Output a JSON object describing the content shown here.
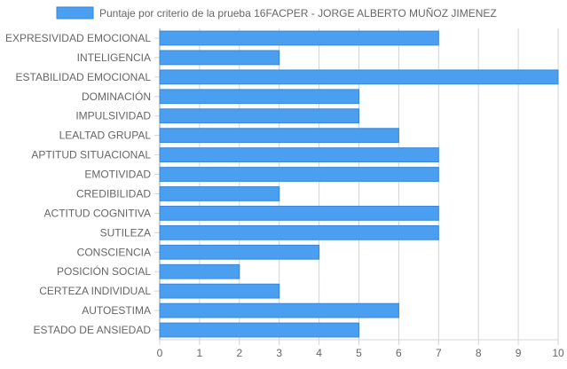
{
  "colors": {
    "bar_fill": "#4a9ff0",
    "bar_stroke": "#3a86d8",
    "grid": "#d4d4d4",
    "axis": "#999999",
    "text": "#666666"
  },
  "chart_data": {
    "type": "bar",
    "orientation": "horizontal",
    "categories": [
      "EXPRESIVIDAD EMOCIONAL",
      "INTELIGENCIA",
      "ESTABILIDAD EMOCIONAL",
      "DOMINACIÓN",
      "IMPULSIVIDAD",
      "LEALTAD GRUPAL",
      "APTITUD SITUACIONAL",
      "EMOTIVIDAD",
      "CREDIBILIDAD",
      "ACTITUD COGNITIVA",
      "SUTILEZA",
      "CONSCIENCIA",
      "POSICIÓN SOCIAL",
      "CERTEZA INDIVIDUAL",
      "AUTOESTIMA",
      "ESTADO DE ANSIEDAD"
    ],
    "series": [
      {
        "name": "Puntaje por criterio de la prueba 16FACPER - JORGE ALBERTO MUÑOZ JIMENEZ",
        "values": [
          7,
          3,
          10,
          5,
          5,
          6,
          7,
          7,
          3,
          7,
          7,
          4,
          2,
          3,
          6,
          5
        ]
      }
    ],
    "xlim": [
      0,
      10
    ],
    "xticks": [
      "0",
      "1",
      "2",
      "3",
      "4",
      "5",
      "6",
      "7",
      "8",
      "9",
      "10"
    ],
    "grid": true,
    "legend_position": "top"
  }
}
